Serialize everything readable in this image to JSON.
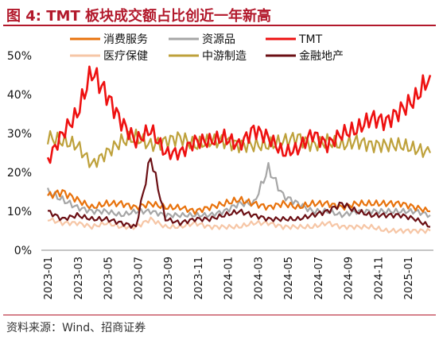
{
  "title": "图 4:  TMT 板块成交额占比创近一年新高",
  "source": "资料来源：Wind、招商证券",
  "chart_data": {
    "type": "line",
    "title": "图 4:  TMT 板块成交额占比创近一年新高",
    "xlabel": "",
    "ylabel": "",
    "ylim": [
      0,
      50
    ],
    "y_ticks": [
      "0%",
      "10%",
      "20%",
      "30%",
      "40%",
      "50%"
    ],
    "x_ticks": [
      "2023-01",
      "2023-03",
      "2023-05",
      "2023-07",
      "2023-09",
      "2023-11",
      "2024-01",
      "2024-03",
      "2024-05",
      "2024-07",
      "2024-09",
      "2024-11",
      "2025-01"
    ],
    "grid": false,
    "legend_position": "top",
    "x": [
      "2023-01",
      "2023-02",
      "2023-03",
      "2023-04",
      "2023-05",
      "2023-06",
      "2023-07",
      "2023-08",
      "2023-09",
      "2023-10",
      "2023-11",
      "2023-12",
      "2024-01",
      "2024-02",
      "2024-03",
      "2024-04",
      "2024-05",
      "2024-06",
      "2024-07",
      "2024-08",
      "2024-09",
      "2024-10",
      "2024-11",
      "2024-12",
      "2025-01",
      "2025-02",
      "2025-03"
    ],
    "series": [
      {
        "name": "消费服务",
        "color": "#e8720c",
        "values": [
          14,
          15,
          13,
          11,
          12,
          12,
          11,
          12,
          11,
          11,
          10,
          11,
          12,
          13,
          12,
          11,
          12,
          11,
          12,
          12,
          11,
          12,
          12,
          12,
          12,
          11,
          10
        ]
      },
      {
        "name": "资源品",
        "color": "#a6a6a6",
        "values": [
          15,
          13,
          11,
          10,
          10,
          9,
          10,
          10,
          9,
          9,
          9,
          9,
          10,
          12,
          12,
          21,
          14,
          12,
          10,
          10,
          9,
          10,
          10,
          10,
          10,
          10,
          9
        ]
      },
      {
        "name": "TMT",
        "color": "#ee1111",
        "values": [
          23,
          30,
          35,
          46,
          40,
          33,
          28,
          31,
          25,
          25,
          28,
          28,
          29,
          27,
          31,
          29,
          25,
          26,
          30,
          27,
          30,
          31,
          34,
          33,
          36,
          39,
          45
        ]
      },
      {
        "name": "医疗保健",
        "color": "#f6c6a6",
        "values": [
          8,
          7,
          7,
          6,
          7,
          6,
          6,
          8,
          6,
          6,
          7,
          6,
          6,
          6,
          7,
          7,
          6,
          6,
          6,
          7,
          6,
          6,
          6,
          5,
          5,
          5,
          5
        ]
      },
      {
        "name": "中游制造",
        "color": "#bea13b",
        "values": [
          29,
          28,
          27,
          22,
          25,
          28,
          29,
          27,
          28,
          29,
          27,
          28,
          28,
          27,
          27,
          27,
          28,
          29,
          27,
          28,
          27,
          28,
          27,
          27,
          27,
          26,
          25
        ]
      },
      {
        "name": "金融地产",
        "color": "#6b0f14",
        "values": [
          10,
          8,
          9,
          8,
          8,
          7,
          6,
          24,
          8,
          7,
          8,
          8,
          9,
          10,
          9,
          8,
          8,
          8,
          9,
          10,
          12,
          10,
          9,
          9,
          9,
          8,
          6
        ]
      }
    ]
  }
}
